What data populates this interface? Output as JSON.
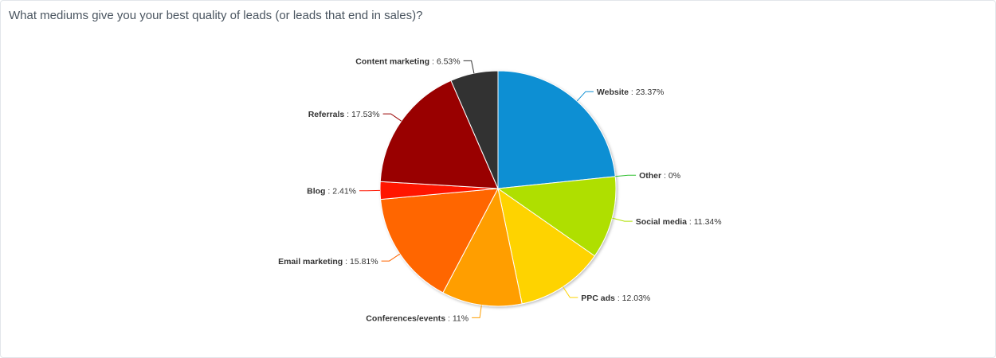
{
  "chart_data": {
    "type": "pie",
    "title": "What mediums give you your best quality of leads (or leads that end in sales)?",
    "slices": [
      {
        "name": "Website",
        "value": 23.37,
        "label": "23.37%",
        "color": "#0e8fd3"
      },
      {
        "name": "Other",
        "value": 0,
        "label": "0%",
        "color": "#2fbf2f"
      },
      {
        "name": "Social media",
        "value": 11.34,
        "label": "11.34%",
        "color": "#afdf00"
      },
      {
        "name": "PPC ads",
        "value": 12.03,
        "label": "12.03%",
        "color": "#fed300"
      },
      {
        "name": "Conferences/events",
        "value": 11,
        "label": "11%",
        "color": "#ff9e00"
      },
      {
        "name": "Email marketing",
        "value": 15.81,
        "label": "15.81%",
        "color": "#ff6600"
      },
      {
        "name": "Blog",
        "value": 2.41,
        "label": "2.41%",
        "color": "#ff1500"
      },
      {
        "name": "Referrals",
        "value": 17.53,
        "label": "17.53%",
        "color": "#990000"
      },
      {
        "name": "Content marketing",
        "value": 6.53,
        "label": "6.53%",
        "color": "#333333"
      }
    ],
    "start_angle": "12 o'clock",
    "direction": "clockwise",
    "legend": "none",
    "data_labels": "outside with connector lines"
  }
}
